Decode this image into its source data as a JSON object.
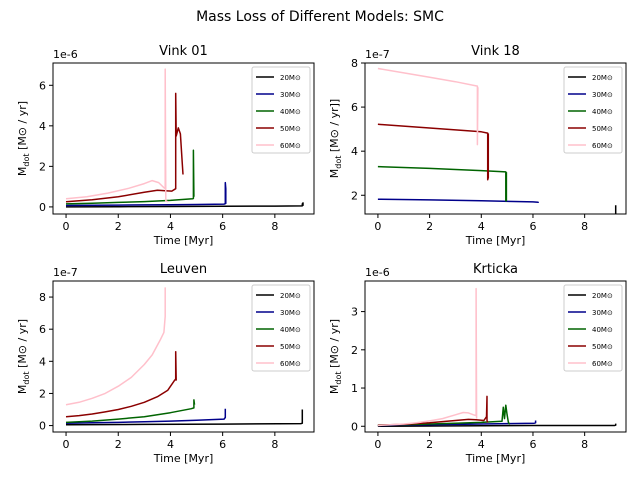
{
  "figure_title": "Mass Loss of Different Models: SMC",
  "colors": {
    "20": "#000000",
    "30": "#00008b",
    "40": "#006400",
    "50": "#8b0000",
    "60": "#ffc0cb"
  },
  "chart_data": [
    {
      "type": "line",
      "title": "Vink 01",
      "xlabel": "Time [Myr]",
      "ylabel": "M_dot [M⊙ / yr]",
      "ylabel_main": "M",
      "ylabel_sub": "dot",
      "ylabel_rest": " [M⊙ / yr]",
      "offset_text": "1e-6",
      "xlim": [
        -0.5,
        9.5
      ],
      "ylim": [
        -0.35,
        7.1
      ],
      "xticks": [
        0,
        2,
        4,
        6,
        8
      ],
      "yticks": [
        0,
        2,
        4,
        6
      ],
      "legend_position": "upper right",
      "series": [
        {
          "name": "20M⊙",
          "key": "20",
          "x": [
            0,
            2,
            4,
            6,
            8,
            9.05,
            9.05,
            9.08,
            9.08
          ],
          "y": [
            0.0,
            0.01,
            0.02,
            0.03,
            0.04,
            0.05,
            0.15,
            0.2,
            0.05
          ]
        },
        {
          "name": "30M⊙",
          "key": "30",
          "x": [
            0,
            1,
            2,
            3,
            4,
            5,
            6.05,
            6.1,
            6.1,
            6.12,
            6.12
          ],
          "y": [
            0.07,
            0.08,
            0.09,
            0.1,
            0.11,
            0.12,
            0.14,
            0.16,
            1.2,
            0.9,
            0.15
          ]
        },
        {
          "name": "40M⊙",
          "key": "40",
          "x": [
            0,
            1,
            2,
            3,
            4,
            4.85,
            4.88,
            4.88,
            4.9
          ],
          "y": [
            0.15,
            0.18,
            0.22,
            0.26,
            0.32,
            0.4,
            0.42,
            2.8,
            0.5
          ]
        },
        {
          "name": "50M⊙",
          "key": "50",
          "x": [
            0,
            1,
            2,
            3,
            3.5,
            3.8,
            4.05,
            4.2,
            4.2,
            4.22,
            4.3,
            4.38,
            4.45,
            4.48
          ],
          "y": [
            0.25,
            0.35,
            0.5,
            0.72,
            0.82,
            0.8,
            0.78,
            0.9,
            5.6,
            3.5,
            3.9,
            3.6,
            2.2,
            1.6
          ]
        },
        {
          "name": "60M⊙",
          "key": "60",
          "x": [
            0,
            0.8,
            1.6,
            2.4,
            3.0,
            3.3,
            3.55,
            3.75,
            3.8,
            3.8,
            3.82,
            3.9
          ],
          "y": [
            0.4,
            0.5,
            0.68,
            0.92,
            1.15,
            1.3,
            1.2,
            0.95,
            0.9,
            6.8,
            0.3,
            0.25
          ]
        }
      ]
    },
    {
      "type": "line",
      "title": "Vink 18",
      "xlabel": "Time [Myr]",
      "ylabel": "M_dot [M⊙ / yr]]",
      "ylabel_main": "M",
      "ylabel_sub": "dot",
      "ylabel_rest": " [M⊙ / yr]]",
      "offset_text": "1e-7",
      "xlim": [
        -0.5,
        9.6
      ],
      "ylim": [
        1.15,
        8.0
      ],
      "xticks": [
        0,
        2,
        4,
        6,
        8
      ],
      "yticks": [
        2,
        4,
        6,
        8
      ],
      "legend_position": "upper right",
      "series": [
        {
          "name": "20M⊙",
          "key": "20",
          "x": [
            0,
            3,
            6,
            9.1,
            9.2,
            9.2
          ],
          "y": [
            0.8,
            0.78,
            0.76,
            0.74,
            0.75,
            1.55
          ]
        },
        {
          "name": "30M⊙",
          "key": "30",
          "x": [
            0,
            2,
            4,
            6,
            6.2,
            6.2
          ],
          "y": [
            1.82,
            1.79,
            1.75,
            1.7,
            1.68,
            1.65
          ]
        },
        {
          "name": "40M⊙",
          "key": "40",
          "x": [
            0,
            2,
            4,
            4.95,
            4.95,
            4.97,
            4.97
          ],
          "y": [
            3.3,
            3.22,
            3.12,
            3.06,
            1.75,
            1.75,
            3.05
          ]
        },
        {
          "name": "50M⊙",
          "key": "50",
          "x": [
            0,
            2,
            4,
            4.25,
            4.25,
            4.27,
            4.27
          ],
          "y": [
            5.22,
            5.05,
            4.88,
            4.82,
            2.7,
            2.8,
            4.8
          ]
        },
        {
          "name": "60M⊙",
          "key": "60",
          "x": [
            0,
            1,
            2,
            3,
            3.85,
            3.85,
            3.87
          ],
          "y": [
            7.75,
            7.55,
            7.35,
            7.15,
            6.95,
            4.3,
            6.9
          ]
        }
      ]
    },
    {
      "type": "line",
      "title": "Leuven",
      "xlabel": "Time [Myr]",
      "ylabel": "M_dot [M⊙ / yr]",
      "ylabel_main": "M",
      "ylabel_sub": "dot",
      "ylabel_rest": " [M⊙ / yr]",
      "offset_text": "1e-7",
      "xlim": [
        -0.5,
        9.5
      ],
      "ylim": [
        -0.4,
        9.0
      ],
      "xticks": [
        0,
        2,
        4,
        6,
        8
      ],
      "yticks": [
        0,
        2,
        4,
        6,
        8
      ],
      "legend_position": "upper right",
      "series": [
        {
          "name": "20M⊙",
          "key": "20",
          "x": [
            0,
            3,
            6,
            9.0,
            9.05,
            9.05
          ],
          "y": [
            0.05,
            0.07,
            0.09,
            0.12,
            0.15,
            1.0
          ]
        },
        {
          "name": "30M⊙",
          "key": "30",
          "x": [
            0,
            1,
            2,
            3,
            4,
            5,
            6.05,
            6.1,
            6.1
          ],
          "y": [
            0.15,
            0.18,
            0.2,
            0.24,
            0.28,
            0.33,
            0.4,
            0.5,
            1.05
          ]
        },
        {
          "name": "40M⊙",
          "key": "40",
          "x": [
            0,
            1,
            2,
            3,
            4,
            4.8,
            4.9,
            4.9,
            4.92
          ],
          "y": [
            0.2,
            0.28,
            0.4,
            0.55,
            0.8,
            1.05,
            1.1,
            1.6,
            1.3
          ]
        },
        {
          "name": "50M⊙",
          "key": "50",
          "x": [
            0,
            0.5,
            1,
            1.5,
            2,
            2.5,
            3,
            3.5,
            3.9,
            4.15,
            4.2,
            4.2,
            4.22
          ],
          "y": [
            0.55,
            0.62,
            0.72,
            0.85,
            1.0,
            1.2,
            1.45,
            1.8,
            2.2,
            2.8,
            2.9,
            4.6,
            2.8
          ]
        },
        {
          "name": "60M⊙",
          "key": "60",
          "x": [
            0,
            0.5,
            1,
            1.5,
            2,
            2.5,
            3,
            3.3,
            3.6,
            3.75,
            3.8,
            3.8
          ],
          "y": [
            1.3,
            1.45,
            1.7,
            2.0,
            2.45,
            3.0,
            3.8,
            4.4,
            5.3,
            5.8,
            6.8,
            8.6
          ]
        }
      ]
    },
    {
      "type": "line",
      "title": "Krticka",
      "xlabel": "Time [Myr]",
      "ylabel": "M_dot [M⊙ / yr]",
      "ylabel_main": "M",
      "ylabel_sub": "dot",
      "ylabel_rest": " [M⊙ / yr]",
      "offset_text": "1e-6",
      "xlim": [
        -0.5,
        9.6
      ],
      "ylim": [
        -0.15,
        3.8
      ],
      "xticks": [
        0,
        2,
        4,
        6,
        8
      ],
      "yticks": [
        0,
        1,
        2,
        3
      ],
      "legend_position": "upper right",
      "series": [
        {
          "name": "20M⊙",
          "key": "20",
          "x": [
            0,
            3,
            6,
            9.15,
            9.2,
            9.2
          ],
          "y": [
            0.0,
            0.01,
            0.02,
            0.02,
            0.03,
            0.07
          ]
        },
        {
          "name": "30M⊙",
          "key": "30",
          "x": [
            0,
            1,
            2,
            3,
            4,
            5,
            6.05,
            6.1,
            6.1
          ],
          "y": [
            0.02,
            0.03,
            0.04,
            0.05,
            0.06,
            0.07,
            0.08,
            0.09,
            0.15
          ]
        },
        {
          "name": "40M⊙",
          "key": "40",
          "x": [
            0,
            1,
            2,
            3,
            4,
            4.8,
            4.85,
            4.9,
            4.95,
            5.0,
            5.05,
            5.1
          ],
          "y": [
            0.03,
            0.04,
            0.06,
            0.08,
            0.1,
            0.13,
            0.5,
            0.2,
            0.55,
            0.3,
            0.1,
            0.05
          ]
        },
        {
          "name": "50M⊙",
          "key": "50",
          "x": [
            0,
            1,
            2,
            3,
            3.5,
            3.8,
            4.1,
            4.2,
            4.22,
            4.22,
            4.25
          ],
          "y": [
            0.03,
            0.05,
            0.09,
            0.15,
            0.18,
            0.17,
            0.15,
            0.25,
            0.78,
            0.15,
            0.1
          ]
        },
        {
          "name": "60M⊙",
          "key": "60",
          "x": [
            0,
            0.5,
            1,
            1.5,
            2,
            2.5,
            3,
            3.3,
            3.5,
            3.7,
            3.8,
            3.8,
            3.82
          ],
          "y": [
            0.02,
            0.04,
            0.06,
            0.09,
            0.14,
            0.2,
            0.3,
            0.36,
            0.35,
            0.3,
            0.28,
            3.6,
            0.2
          ]
        }
      ]
    }
  ]
}
